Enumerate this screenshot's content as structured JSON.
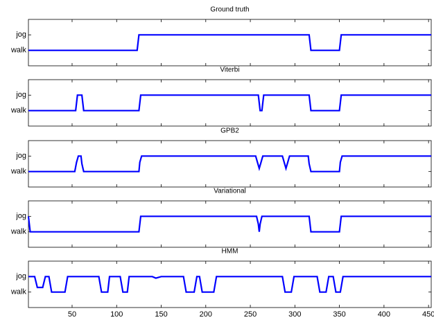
{
  "chart_data": [
    {
      "type": "line",
      "title": "Ground truth",
      "color": "#0000ff",
      "x": [
        1,
        123,
        125,
        316,
        318,
        350,
        352,
        453
      ],
      "values": [
        0,
        0,
        1,
        1,
        0,
        0,
        1,
        1
      ],
      "xlim": [
        1,
        453
      ],
      "ylim": [
        -1,
        2
      ],
      "yticks": [
        {
          "value": 0,
          "label": "walk"
        },
        {
          "value": 1,
          "label": "jog"
        }
      ]
    },
    {
      "type": "line",
      "title": "Viterbi",
      "color": "#0000ff",
      "x": [
        1,
        54,
        56,
        61,
        63,
        125,
        127,
        259,
        261,
        263,
        265,
        316,
        318,
        350,
        352,
        453
      ],
      "values": [
        0,
        0,
        1,
        1,
        0,
        0,
        1,
        1,
        0,
        0,
        1,
        1,
        0,
        0,
        1,
        1
      ],
      "xlim": [
        1,
        453
      ],
      "ylim": [
        -1,
        2
      ],
      "yticks": [
        {
          "value": 0,
          "label": "walk"
        },
        {
          "value": 1,
          "label": "jog"
        }
      ]
    },
    {
      "type": "line",
      "title": "GPB2",
      "color": "#0000ff",
      "x": [
        1,
        53,
        55,
        57,
        60,
        61,
        63,
        125,
        126,
        128,
        256,
        258,
        260,
        262,
        264,
        286,
        288,
        290,
        292,
        294,
        315,
        316,
        318,
        350,
        351,
        353,
        453
      ],
      "values": [
        0,
        0,
        0.6,
        1,
        1,
        0.5,
        0,
        0,
        0.6,
        1,
        1,
        0.6,
        0.2,
        0.6,
        1,
        1,
        0.6,
        0.2,
        0.6,
        1,
        1,
        0.5,
        0,
        0,
        0.6,
        1,
        1
      ],
      "xlim": [
        1,
        453
      ],
      "ylim": [
        -1,
        2
      ],
      "yticks": [
        {
          "value": 0,
          "label": "walk"
        },
        {
          "value": 1,
          "label": "jog"
        }
      ]
    },
    {
      "type": "line",
      "title": "Variational",
      "color": "#0000ff",
      "x": [
        1,
        3,
        125,
        127,
        257,
        259,
        260,
        261,
        263,
        316,
        318,
        350,
        352,
        453
      ],
      "values": [
        1,
        0,
        0,
        1,
        1,
        0.5,
        0,
        0.5,
        1,
        1,
        0,
        0,
        1,
        1
      ],
      "xlim": [
        1,
        453
      ],
      "ylim": [
        -1,
        2
      ],
      "yticks": [
        {
          "value": 0,
          "label": "walk"
        },
        {
          "value": 1,
          "label": "jog"
        }
      ]
    },
    {
      "type": "line",
      "title": "HMM",
      "color": "#0000ff",
      "x": [
        1,
        8,
        11,
        17,
        20,
        24,
        27,
        42,
        45,
        80,
        83,
        90,
        92,
        104,
        107,
        112,
        114,
        140,
        144,
        150,
        175,
        178,
        187,
        190,
        193,
        196,
        209,
        212,
        286,
        289,
        296,
        299,
        325,
        328,
        335,
        338,
        343,
        346,
        351,
        354,
        453
      ],
      "values": [
        1,
        1,
        0.3,
        0.3,
        1,
        1,
        0,
        0,
        1,
        1,
        0,
        0,
        1,
        1,
        0,
        0,
        1,
        1,
        0.9,
        1,
        1,
        0,
        0,
        1,
        1,
        0,
        0,
        1,
        1,
        0,
        0,
        1,
        1,
        0,
        0,
        1,
        1,
        0,
        0,
        1,
        1
      ],
      "xlim": [
        1,
        453
      ],
      "ylim": [
        -1,
        2
      ],
      "yticks": [
        {
          "value": 0,
          "label": "walk"
        },
        {
          "value": 1,
          "label": "jog"
        }
      ],
      "xticks": [
        50,
        100,
        150,
        200,
        250,
        300,
        350,
        400,
        450
      ]
    }
  ]
}
